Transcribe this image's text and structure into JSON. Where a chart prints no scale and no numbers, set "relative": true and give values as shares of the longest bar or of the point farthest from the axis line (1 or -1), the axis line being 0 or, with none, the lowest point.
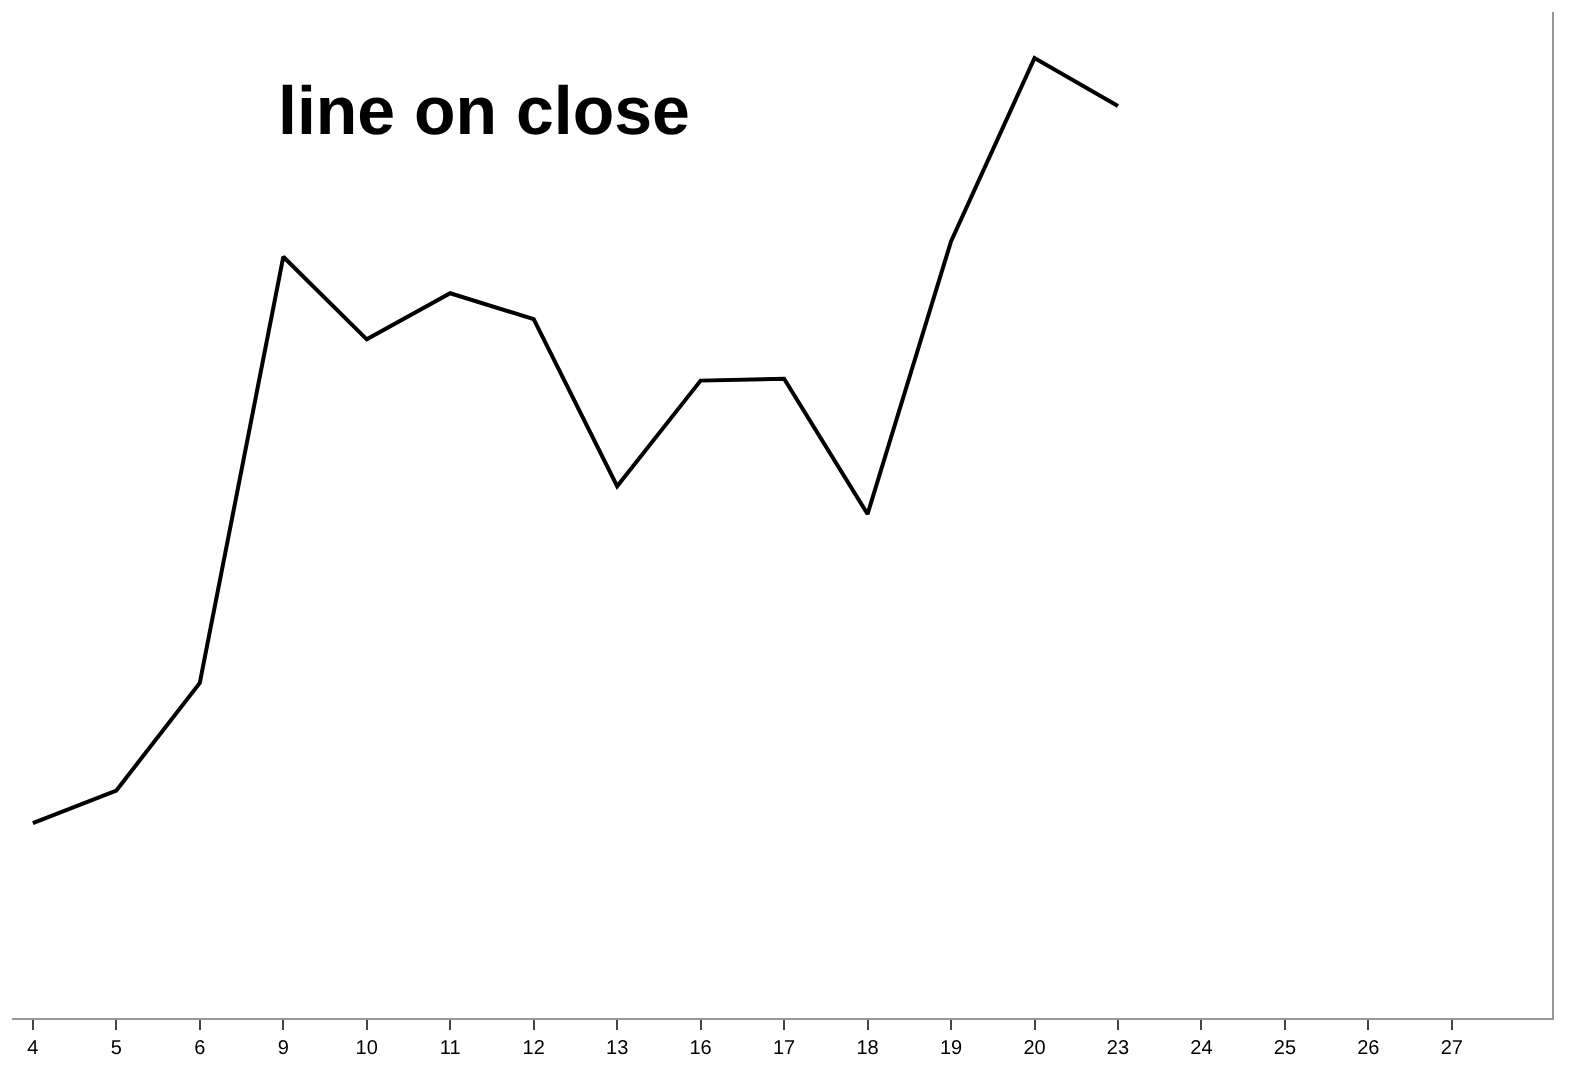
{
  "chart_data": {
    "type": "line",
    "relative": true,
    "categories": [
      "4",
      "5",
      "6",
      "9",
      "10",
      "11",
      "12",
      "13",
      "16",
      "17",
      "18",
      "19",
      "20",
      "23",
      "24",
      "25",
      "26",
      "27"
    ],
    "series": [
      {
        "color": "#000000",
        "values": [
          0.203,
          0.237,
          0.349,
          0.793,
          0.707,
          0.755,
          0.728,
          0.554,
          0.664,
          0.666,
          0.525,
          0.809,
          1,
          0.95,
          null,
          null,
          null,
          null
        ]
      }
    ],
    "annotations": [
      "line on close"
    ],
    "marker": "none",
    "line_style": "solid"
  }
}
